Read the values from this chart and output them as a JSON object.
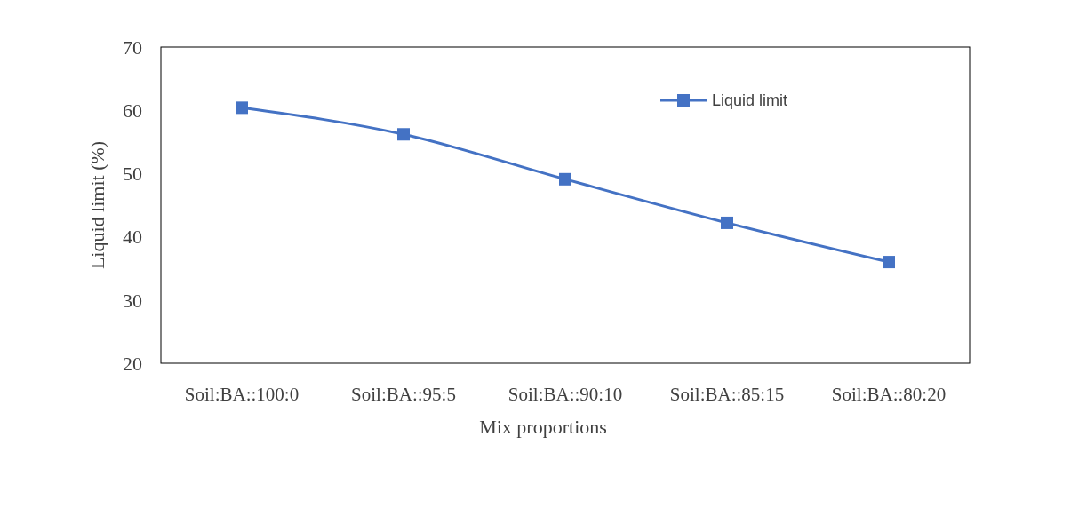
{
  "chart_data": {
    "type": "line",
    "xlabel": "Mix proportions",
    "ylabel": "Liquid limit (%)",
    "categories": [
      "Soil:BA::100:0",
      "Soil:BA::95:5",
      "Soil:BA::90:10",
      "Soil:BA::85:15",
      "Soil:BA::80:20"
    ],
    "series": [
      {
        "name": "Liquid limit",
        "color": "#4472c4",
        "values": [
          60.4,
          56.2,
          49.1,
          42.2,
          36.0
        ]
      }
    ],
    "ylim": [
      20,
      70
    ],
    "yticks": [
      20,
      30,
      40,
      50,
      60,
      70
    ],
    "grid": false,
    "legend": "top right",
    "marker": "square",
    "line_style": "solid"
  }
}
